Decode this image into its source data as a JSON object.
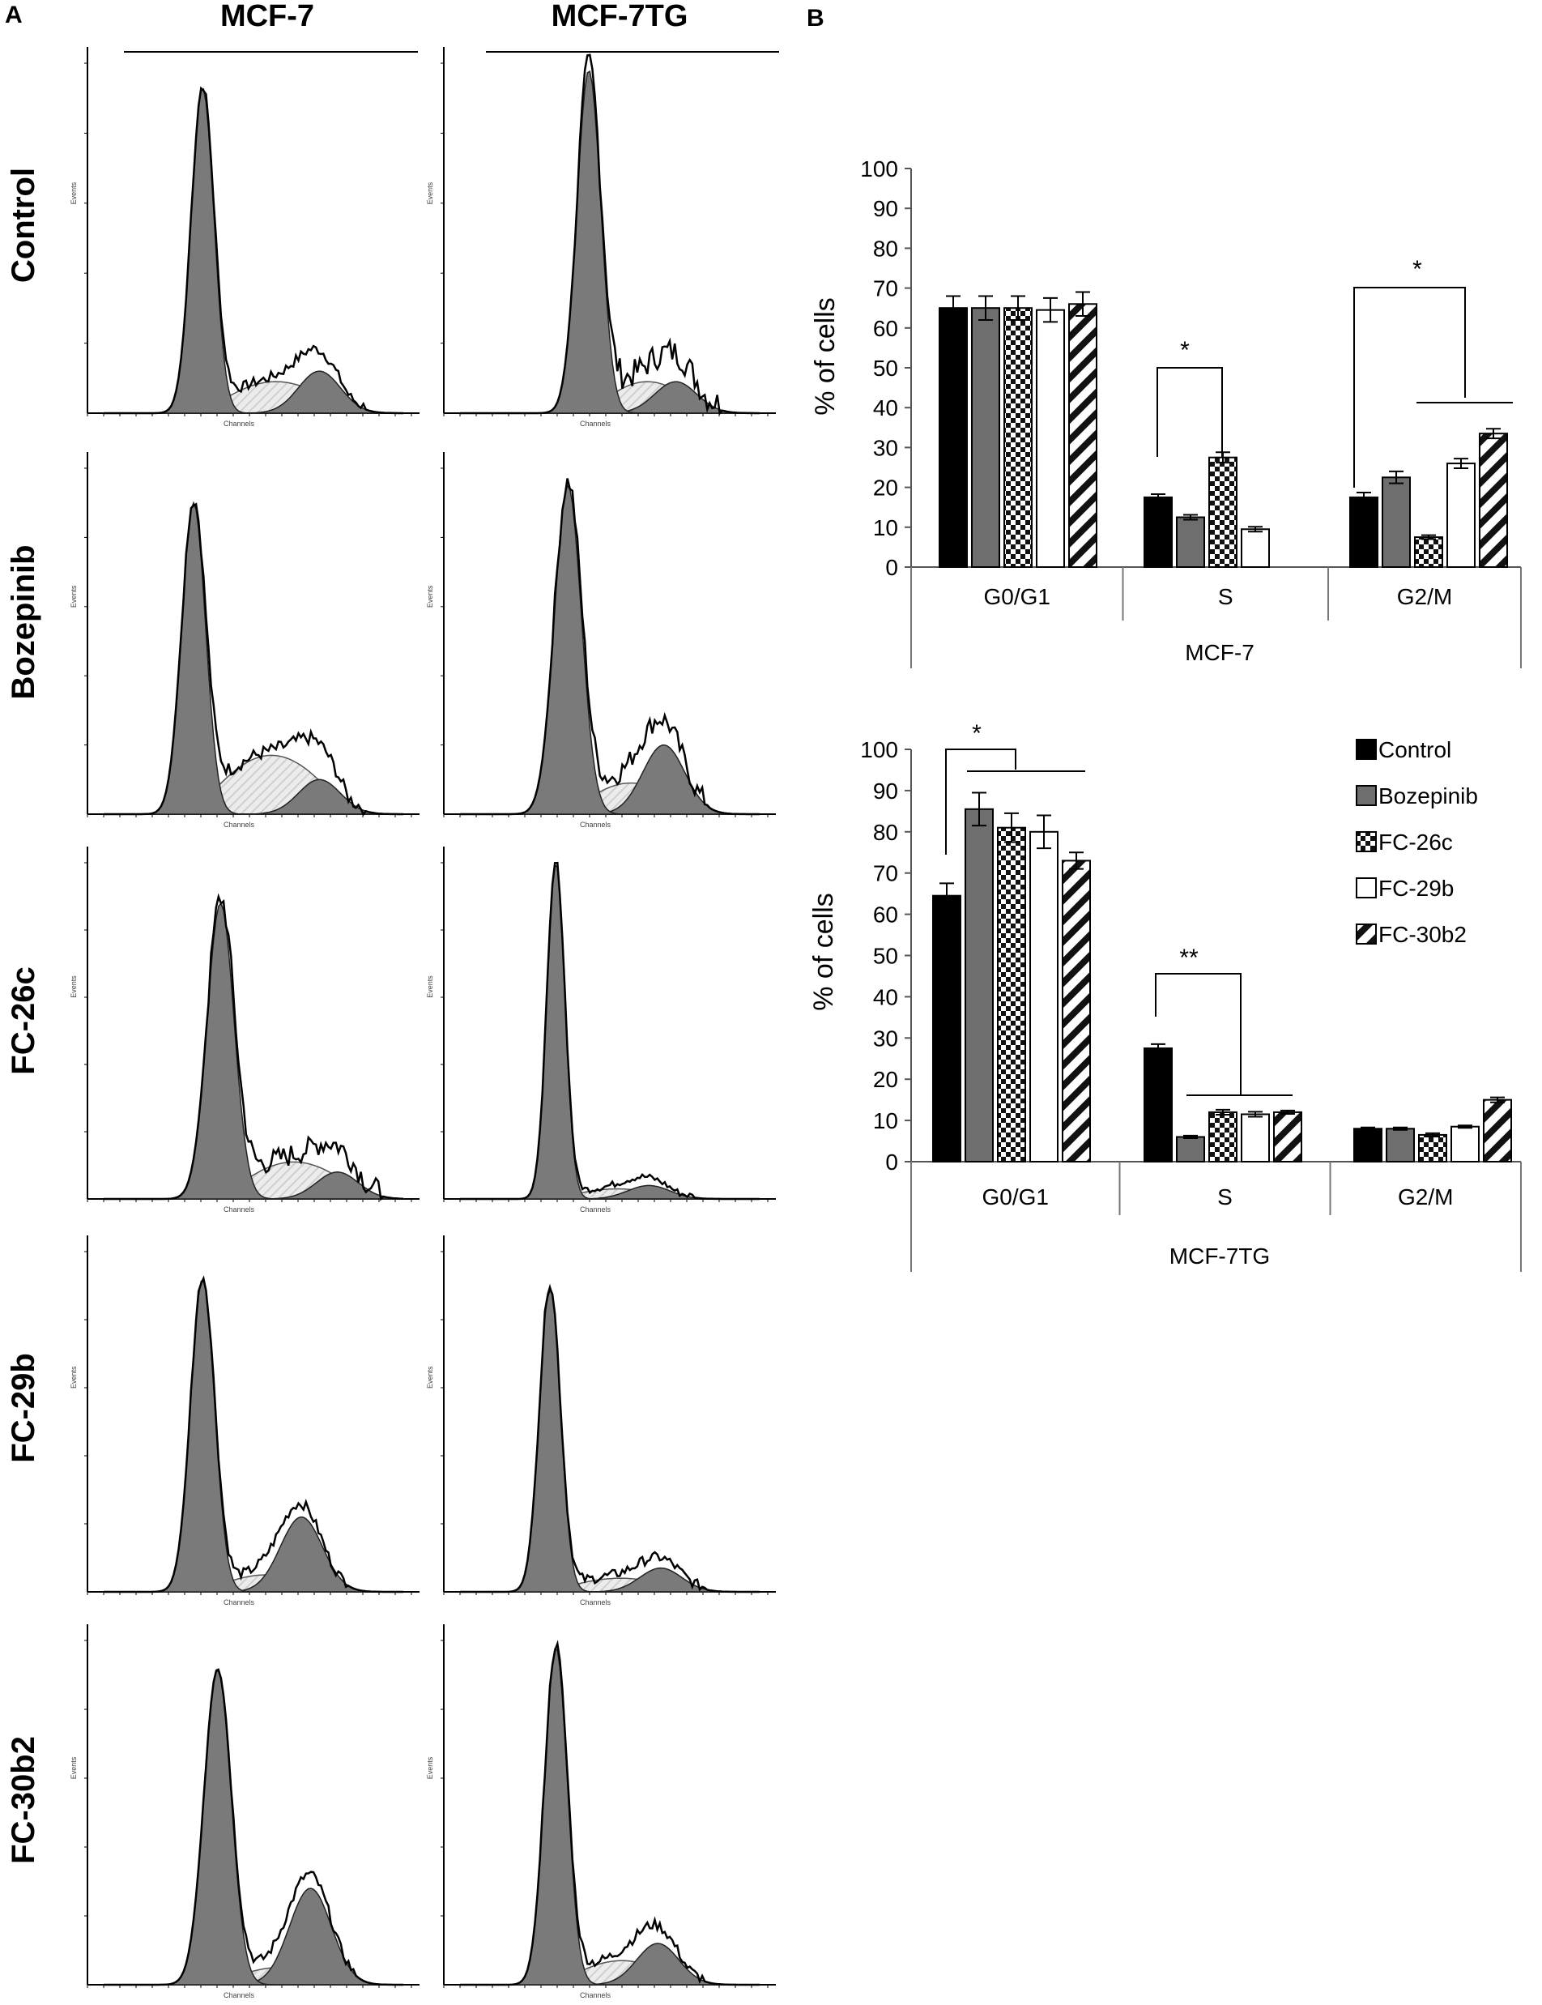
{
  "panel_labels": {
    "a": "A",
    "b": "B"
  },
  "panel_a": {
    "columns": [
      "MCF-7",
      "MCF-7TG"
    ],
    "rows": [
      "Control",
      "Bozepinib",
      "FC-26c",
      "FC-29b",
      "FC-30b2"
    ],
    "x_axis_label": "Channels",
    "y_axis_label": "Events"
  },
  "colors": {
    "control": "#000000",
    "bozepinib": "#6e6e6e",
    "histogram_g1": "#7a7a7a",
    "histogram_s": "#e2e2e2"
  },
  "chart_data": [
    {
      "type": "bar",
      "title": "",
      "xlabel": "MCF-7",
      "ylabel": "% of cells",
      "ylim": [
        0,
        100
      ],
      "yticks": [
        "0",
        "10",
        "20",
        "30",
        "40",
        "50",
        "60",
        "70",
        "80",
        "90",
        "100"
      ],
      "categories": [
        "G0/G1",
        "S",
        "G2/M"
      ],
      "series": [
        {
          "name": "Control",
          "values": [
            65,
            17.5,
            17.5
          ],
          "errors": [
            3,
            0.8,
            1.2
          ]
        },
        {
          "name": "Bozepinib",
          "values": [
            65,
            12.5,
            22.5
          ],
          "errors": [
            3,
            0.6,
            1.5
          ]
        },
        {
          "name": "FC-26c",
          "values": [
            65,
            27.5,
            7.5
          ],
          "errors": [
            3,
            1.3,
            0.5
          ]
        },
        {
          "name": "FC-29b",
          "values": [
            64.5,
            9.5,
            26
          ],
          "errors": [
            3,
            0.6,
            1.2
          ]
        },
        {
          "name": "FC-30b2",
          "values": [
            66,
            0,
            33.5
          ],
          "errors": [
            3,
            0,
            1.2
          ]
        }
      ],
      "annotations": [
        "*",
        "*"
      ]
    },
    {
      "type": "bar",
      "title": "",
      "xlabel": "MCF-7TG",
      "ylabel": "% of cells",
      "ylim": [
        0,
        100
      ],
      "yticks": [
        "0",
        "10",
        "20",
        "30",
        "40",
        "50",
        "60",
        "70",
        "80",
        "90",
        "100"
      ],
      "categories": [
        "G0/G1",
        "S",
        "G2/M"
      ],
      "series": [
        {
          "name": "Control",
          "values": [
            64.5,
            27.5,
            8
          ],
          "errors": [
            3,
            1,
            0.3
          ]
        },
        {
          "name": "Bozepinib",
          "values": [
            85.5,
            6,
            8
          ],
          "errors": [
            4,
            0.3,
            0.3
          ]
        },
        {
          "name": "FC-26c",
          "values": [
            81,
            12,
            6.5
          ],
          "errors": [
            3.5,
            0.6,
            0.4
          ]
        },
        {
          "name": "FC-29b",
          "values": [
            80,
            11.5,
            8.5
          ],
          "errors": [
            4,
            0.6,
            0.3
          ]
        },
        {
          "name": "FC-30b2",
          "values": [
            73,
            12,
            15
          ],
          "errors": [
            2,
            0.4,
            0.6
          ]
        }
      ],
      "legend": [
        "Control",
        "Bozepinib",
        "FC-26c",
        "FC-29b",
        "FC-30b2"
      ],
      "legend_position": "top-right",
      "annotations": [
        "*",
        "**"
      ]
    }
  ]
}
